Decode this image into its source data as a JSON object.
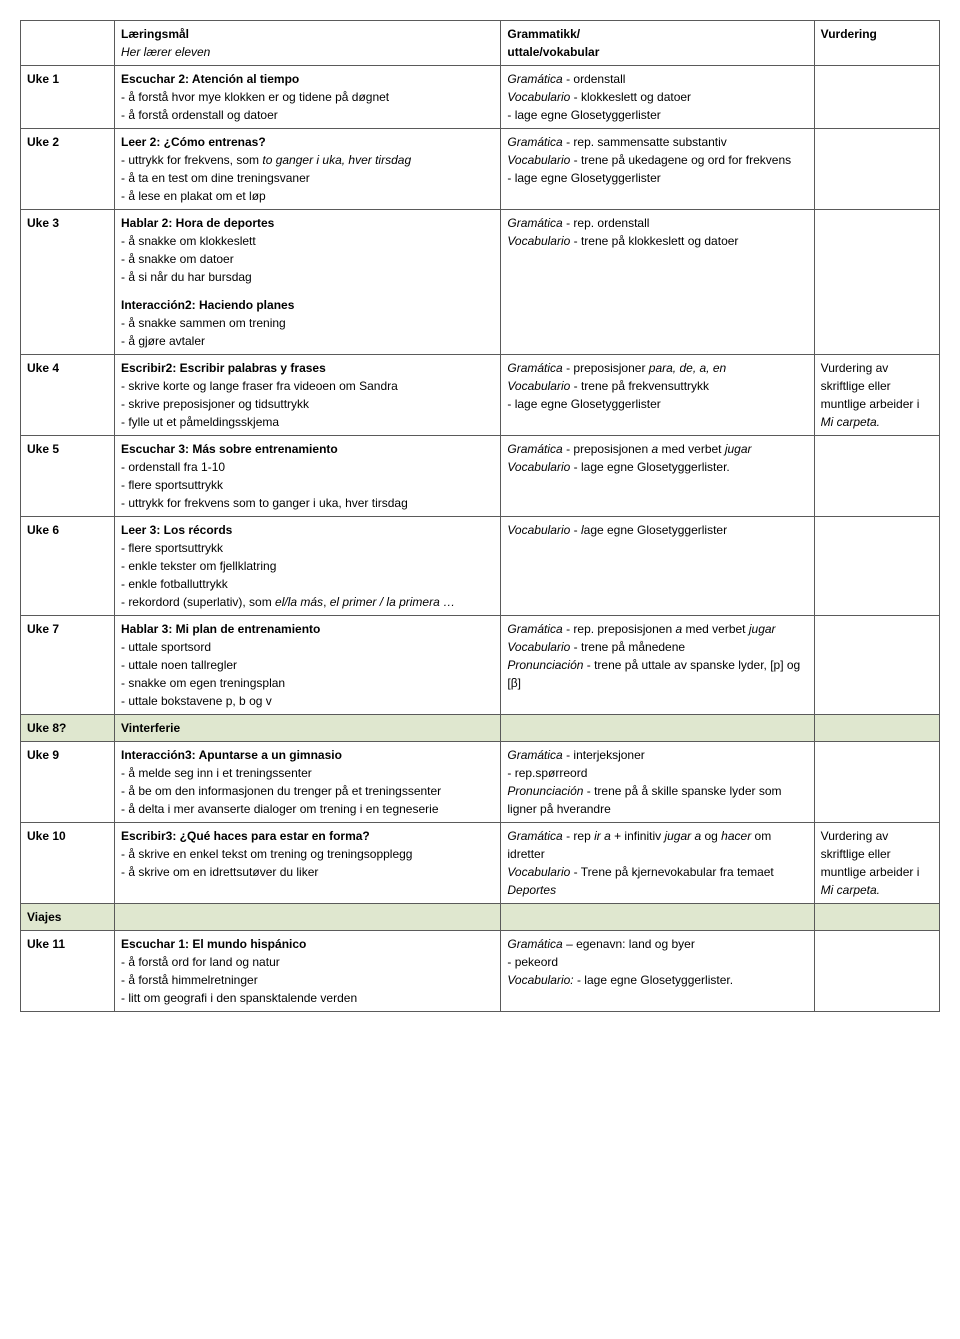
{
  "header": {
    "col1": "",
    "col2_title": "Læringsmål",
    "col2_sub": "Her lærer eleven",
    "col3_title": "Grammatikk/",
    "col3_sub": "uttale/vokabular",
    "col4": "Vurdering"
  },
  "rows": [
    {
      "week": "Uke 1",
      "learn_title": "Escuchar 2: Atención al tiempo",
      "learn_lines": [
        "- å forstå hvor mye klokken er og tidene på døgnet",
        "- å forstå ordenstall og datoer"
      ],
      "gram_segments": [
        [
          {
            "t": "Gramática",
            "i": true
          },
          {
            "t": " - ordenstall"
          }
        ],
        [
          {
            "t": "Vocabulario",
            "i": true
          },
          {
            "t": " - klokkeslett og datoer"
          }
        ],
        [
          {
            "t": "- lage egne Glosetyggerlister"
          }
        ]
      ],
      "vurd": ""
    },
    {
      "week": "Uke 2",
      "learn_title": "Leer 2: ¿Cómo entrenas?",
      "learn_segments": [
        [
          {
            "t": "- uttrykk for frekvens, som "
          },
          {
            "t": "to ganger i uka, hver tirsdag",
            "i": true
          }
        ],
        [
          {
            "t": "- å ta en test om dine treningsvaner"
          }
        ],
        [
          {
            "t": "- å lese en plakat om et løp"
          }
        ]
      ],
      "gram_segments": [
        [
          {
            "t": "Gramática",
            "i": true
          },
          {
            "t": " - rep. sammensatte substantiv"
          }
        ],
        [
          {
            "t": "Vocabulario",
            "i": true
          },
          {
            "t": " - trene på ukedagene og ord for frekvens"
          }
        ],
        [
          {
            "t": "- lage egne Glosetyggerlister"
          }
        ]
      ],
      "vurd": ""
    },
    {
      "week": "Uke 3",
      "learn_title": "Hablar 2: Hora de deportes",
      "learn_lines": [
        "- å snakke om klokkeslett",
        "- å snakke om datoer",
        "- å si når du har bursdag"
      ],
      "learn_title2": "Interacción2: Haciendo planes",
      "learn_lines2": [
        "- å snakke sammen om trening",
        "- å gjøre avtaler"
      ],
      "gram_segments": [
        [
          {
            "t": "Gramática",
            "i": true
          },
          {
            "t": " - rep. ordenstall"
          }
        ],
        [
          {
            "t": "Vocabulario",
            "i": true
          },
          {
            "t": " - trene på klokkeslett og datoer"
          }
        ]
      ],
      "vurd": ""
    },
    {
      "week": "Uke 4",
      "learn_title": "Escribir2: Escribir palabras y frases",
      "learn_lines": [
        "- skrive korte og lange fraser fra videoen om Sandra",
        "- skrive preposisjoner og tidsuttrykk",
        "- fylle ut et påmeldingsskjema"
      ],
      "gram_segments": [
        [
          {
            "t": "Gramática",
            "i": true
          },
          {
            "t": " - preposisjoner "
          },
          {
            "t": "para, de, a, en",
            "i": true
          }
        ],
        [
          {
            "t": "Vocabulario",
            "i": true
          },
          {
            "t": " - trene på frekvensuttrykk"
          }
        ],
        [
          {
            "t": "- lage egne Glosetyggerlister"
          }
        ]
      ],
      "vurd_segments": [
        [
          {
            "t": "Vurdering av skriftlige eller muntlige arbeider i "
          },
          {
            "t": "Mi carpeta.",
            "i": true
          }
        ]
      ]
    },
    {
      "week": "Uke 5",
      "learn_title": "Escuchar 3: Más sobre entrenamiento",
      "learn_lines": [
        "- ordenstall fra 1-10",
        "- flere sportsuttrykk",
        "- uttrykk for frekvens som to ganger i uka, hver tirsdag"
      ],
      "gram_segments": [
        [
          {
            "t": "Gramática",
            "i": true
          },
          {
            "t": " - preposisjonen "
          },
          {
            "t": "a",
            "i": true
          },
          {
            "t": " med verbet "
          },
          {
            "t": "jugar",
            "i": true
          }
        ],
        [
          {
            "t": "Vocabulario",
            "i": true
          },
          {
            "t": " - lage egne Glosetyggerlister."
          }
        ]
      ],
      "vurd": ""
    },
    {
      "week": "Uke 6",
      "learn_title": "Leer 3: Los récords",
      "learn_segments": [
        [
          {
            "t": "- flere sportsuttrykk"
          }
        ],
        [
          {
            "t": "- enkle tekster om fjellklatring"
          }
        ],
        [
          {
            "t": "- enkle fotballuttrykk"
          }
        ],
        [
          {
            "t": "- rekordord (superlativ), som "
          },
          {
            "t": "el/la más",
            "i": true
          },
          {
            "t": ", "
          },
          {
            "t": "el primer / la primera …",
            "i": true
          }
        ]
      ],
      "gram_segments": [
        [
          {
            "t": "Vocabulario",
            "i": true
          },
          {
            "t": " - "
          },
          {
            "t": "l",
            "i": true
          },
          {
            "t": "age egne Glosetyggerlister"
          }
        ]
      ],
      "vurd": ""
    },
    {
      "week": "Uke 7",
      "learn_title": "Hablar 3: Mi plan de entrenamiento",
      "learn_lines": [
        "- uttale sportsord",
        "- uttale noen tallregler",
        "- snakke om egen treningsplan",
        "- uttale bokstavene p, b og v"
      ],
      "gram_segments": [
        [
          {
            "t": "Gramática",
            "i": true
          },
          {
            "t": " - rep. preposisjonen "
          },
          {
            "t": "a",
            "i": true
          },
          {
            "t": " med verbet "
          },
          {
            "t": "jugar",
            "i": true
          }
        ],
        [
          {
            "t": "Vocabulario",
            "i": true
          },
          {
            "t": " - trene på månedene"
          }
        ],
        [
          {
            "t": "Pronunciación",
            "i": true
          },
          {
            "t": " - trene på uttale av spanske lyder, [p] og [β]"
          }
        ]
      ],
      "vurd": ""
    },
    {
      "shade": true,
      "week": "Uke 8?",
      "learn_title": "Vinterferie",
      "gram_segments": [],
      "vurd": ""
    },
    {
      "week": "Uke 9",
      "learn_title": "Interacción3: Apuntarse a un gimnasio",
      "learn_lines": [
        "- å melde seg inn i et treningssenter",
        "- å be om den informasjonen du trenger på et treningssenter",
        "- å delta i mer avanserte dialoger om trening i en tegneserie"
      ],
      "gram_segments": [
        [
          {
            "t": "Gramática",
            "i": true
          },
          {
            "t": " - interjeksjoner"
          }
        ],
        [
          {
            "t": "- rep.spørreord"
          }
        ],
        [
          {
            "t": "Pronunciación",
            "i": true
          },
          {
            "t": " - trene på å skille spanske lyder som ligner på hverandre"
          }
        ]
      ],
      "vurd": ""
    },
    {
      "week": "Uke 10",
      "learn_title": "Escribir3: ¿Qué haces para estar en forma?",
      "learn_lines": [
        "- å skrive en enkel tekst om trening og treningsopplegg",
        "- å skrive om en idrettsutøver du liker"
      ],
      "gram_segments": [
        [
          {
            "t": "Gramática",
            "i": true
          },
          {
            "t": " - rep "
          },
          {
            "t": "ir a",
            "i": true
          },
          {
            "t": " + infinitiv "
          },
          {
            "t": "jugar a",
            "i": true
          },
          {
            "t": " og "
          },
          {
            "t": "hacer",
            "i": true
          },
          {
            "t": " om idretter"
          }
        ],
        [
          {
            "t": "Vocabulario",
            "i": true
          },
          {
            "t": " - Trene på kjernevokabular fra temaet "
          },
          {
            "t": "Deportes",
            "i": true
          }
        ]
      ],
      "vurd_segments": [
        [
          {
            "t": "Vurdering av skriftlige eller muntlige arbeider i "
          },
          {
            "t": "Mi carpeta.",
            "i": true
          }
        ]
      ]
    },
    {
      "shade": true,
      "week": "Viajes",
      "learn_title": "",
      "gram_segments": [],
      "vurd": ""
    },
    {
      "week": "Uke 11",
      "learn_title": "Escuchar 1: El mundo hispánico",
      "learn_lines": [
        "- å forstå ord for land og natur",
        "- å forstå himmelretninger",
        "- litt om geografi i den spansktalende verden"
      ],
      "gram_segments": [
        [
          {
            "t": "Gramática",
            "i": true
          },
          {
            "t": " – egenavn: land og byer"
          }
        ],
        [
          {
            "t": "- pekeord"
          }
        ],
        [
          {
            "t": "Vocabulario:",
            "i": true
          },
          {
            "t": " - lage egne Glosetyggerlister."
          }
        ]
      ],
      "vurd": ""
    }
  ]
}
